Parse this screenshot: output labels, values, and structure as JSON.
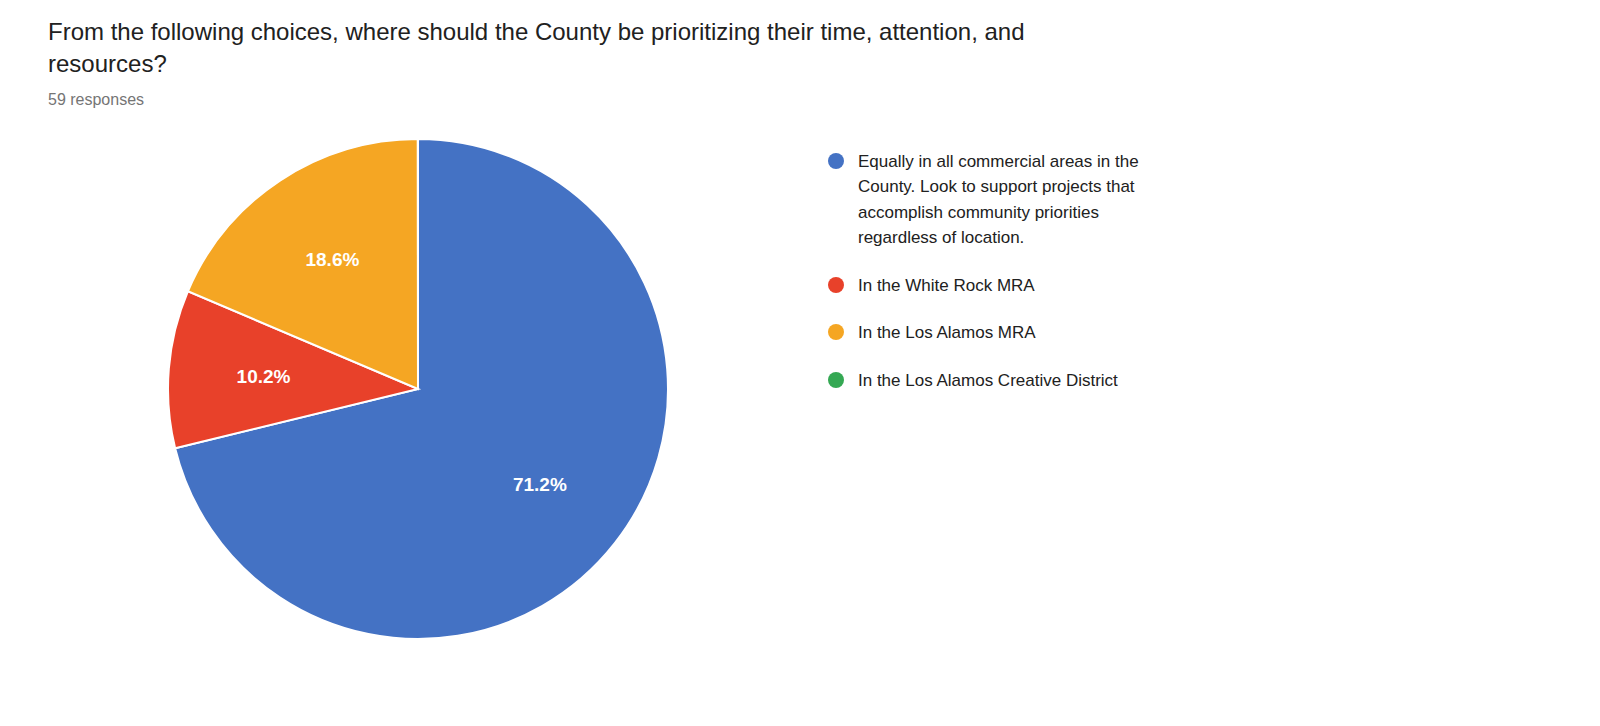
{
  "chart_data": {
    "type": "pie",
    "title": "From the following choices, where should the County be prioritizing their time, attention, and\nresources?",
    "subtitle": "59 responses",
    "categories": [
      "Equally in all commercial areas in the\nCounty. Look to support projects that\naccomplish community priorities\nregardless of location.",
      "In the White Rock MRA",
      "In the Los Alamos MRA",
      "In the Los Alamos Creative District"
    ],
    "values": [
      71.2,
      10.2,
      18.6,
      0.01
    ],
    "value_labels": [
      "71.2%",
      "10.2%",
      "18.6%",
      null
    ],
    "colors": [
      "#4472C4",
      "#E8412A",
      "#F5A623",
      "#34A853"
    ],
    "data_labels": true,
    "legend": "right"
  }
}
